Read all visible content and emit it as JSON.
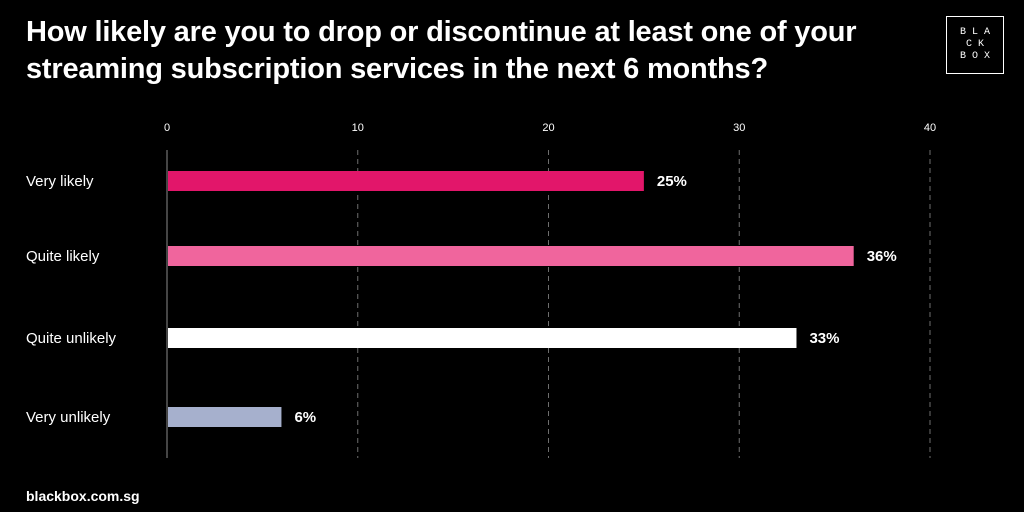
{
  "title": "How likely are you to drop or discontinue at least one of your streaming subscription services in the next 6 months?",
  "logo": {
    "lines": [
      "BLA",
      "CK",
      "BOX"
    ]
  },
  "footer": {
    "url": "blackbox.com.sg"
  },
  "colors": {
    "background": "#000000",
    "text": "#ffffff",
    "grid": "#6e6e6e"
  },
  "chart_data": {
    "type": "bar",
    "orientation": "horizontal",
    "categories": [
      "Very likely",
      "Quite likely",
      "Quite unlikely",
      "Very unlikely"
    ],
    "values": [
      25,
      36,
      33,
      6
    ],
    "value_labels": [
      "25%",
      "36%",
      "33%",
      "6%"
    ],
    "bar_colors": [
      "#e2166a",
      "#f0659d",
      "#ffffff",
      "#a6b0cd"
    ],
    "xlim": [
      0,
      40
    ],
    "xticks": [
      0,
      10,
      20,
      30,
      40
    ],
    "xaxis_position": "top",
    "grid": true,
    "legend": "none"
  }
}
